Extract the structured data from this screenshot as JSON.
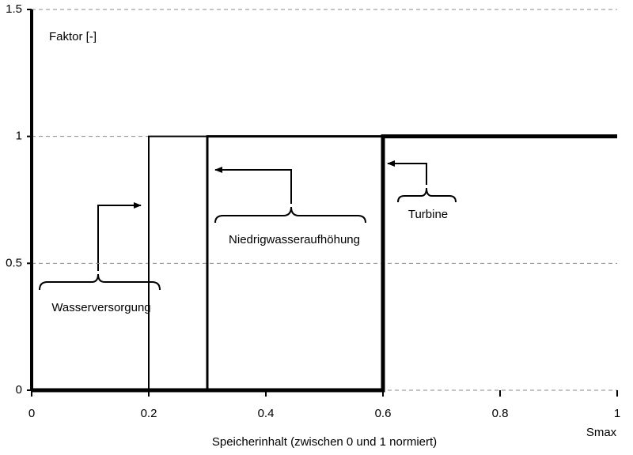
{
  "chart_data": {
    "type": "line",
    "x_label": "Speicherinhalt (zwischen 0 und 1 normiert)",
    "y_label": "Faktor [-]",
    "x_end_label": "Smax",
    "xlim": [
      0,
      1
    ],
    "xticks": [
      0,
      0.2,
      0.4,
      0.6,
      0.8,
      1
    ],
    "ylim": [
      0,
      1.5
    ],
    "yticks": [
      0,
      0.5,
      1,
      1.5
    ],
    "grid": true,
    "series": [
      {
        "name": "Wasserversorgung",
        "color": "#000000",
        "line_width": 2,
        "x": [
          0,
          0.2,
          0.2,
          1
        ],
        "values": [
          0,
          0,
          1,
          1
        ]
      },
      {
        "name": "Niedrigwasseraufhöhung",
        "color": "#000000",
        "line_width": 3,
        "x": [
          0,
          0.3,
          0.3,
          1
        ],
        "values": [
          0,
          0,
          1,
          1
        ]
      },
      {
        "name": "Turbine",
        "color": "#000000",
        "line_width": 5,
        "x": [
          0,
          0.6,
          0.6,
          1
        ],
        "values": [
          0,
          0,
          1,
          1
        ]
      }
    ]
  }
}
